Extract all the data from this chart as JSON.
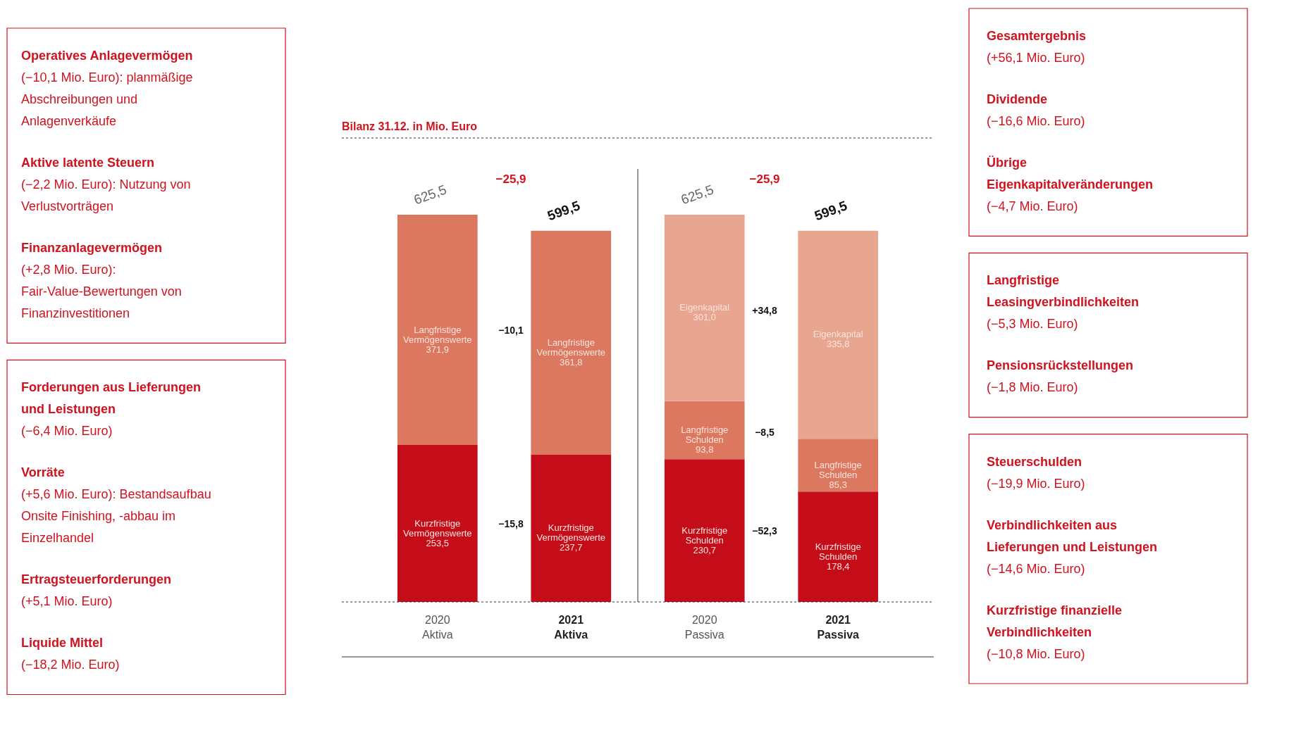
{
  "chart_data": {
    "type": "bar",
    "stacked": true,
    "title": "Bilanz 31.12. in Mio. Euro",
    "categories": [
      "2020 Aktiva",
      "2021 Aktiva",
      "2020 Passiva",
      "2021 Passiva"
    ],
    "series": [
      {
        "name": "Kurzfristige Vermögenswerte",
        "color": "#c40d19",
        "values": [
          253.5,
          237.7,
          null,
          null
        ],
        "value_labels": [
          "253,5",
          "237,7",
          null,
          null
        ]
      },
      {
        "name": "Langfristige Vermögenswerte",
        "color": "#dc7860",
        "values": [
          371.9,
          361.8,
          null,
          null
        ],
        "value_labels": [
          "371,9",
          "361,8",
          null,
          null
        ]
      },
      {
        "name": "Kurzfristige Schulden",
        "color": "#c40d19",
        "values": [
          null,
          null,
          230.7,
          178.4
        ],
        "value_labels": [
          null,
          null,
          "230,7",
          "178,4"
        ]
      },
      {
        "name": "Langfristige Schulden",
        "color": "#dc7860",
        "values": [
          null,
          null,
          93.8,
          85.3
        ],
        "value_labels": [
          null,
          null,
          "93,8",
          "85,3"
        ]
      },
      {
        "name": "Eigenkapital",
        "color": "#e8a590",
        "values": [
          null,
          null,
          301.0,
          335.8
        ],
        "value_labels": [
          null,
          null,
          "301,0",
          "335,8"
        ]
      }
    ],
    "totals": [
      "625,5",
      "599,5",
      "625,5",
      "599,5"
    ],
    "annotations": [
      "Operatives Anlagevermögen (−10,1 Mio. Euro): planmäßige Abschreibungen und Anlagenverkäufe",
      "Aktive latente Steuern (−2,2 Mio. Euro): Nutzung von Verlustvorträgen",
      "Finanzanlagevermögen (+2,8 Mio. Euro): Fair-Value-Bewertungen von Finanzinvestitionen",
      "Forderungen aus Lieferungen und Leistungen (−6,4 Mio. Euro)",
      "Vorräte (+5,6 Mio. Euro): Bestandsaufbau Onsite Finishing, -abbau im Einzelhandel",
      "Ertragsteuerforderungen (+5,1 Mio. Euro)",
      "Liquide Mittel (−18,2 Mio. Euro)",
      "Gesamtergebnis (+56,1 Mio. Euro)",
      "Dividende (−16,6 Mio. Euro)",
      "Übrige Eigenkapitalveränderungen (−4,7 Mio. Euro)",
      "Langfristige Leasingverbindlichkeiten (−5,3 Mio. Euro)",
      "Pensionsrückstellungen (−1,8 Mio. Euro)",
      "Steuerschulden (−19,9 Mio. Euro)",
      "Verbindlichkeiten aus Lieferungen und Leistungen (−14,6 Mio. Euro)",
      "Kurzfristige finanzielle Verbindlichkeiten (−10,8 Mio. Euro)",
      "−25,9",
      "−10,1",
      "−15,8",
      "−25,9",
      "+34,8",
      "−8,5",
      "−52,3"
    ]
  }
}
